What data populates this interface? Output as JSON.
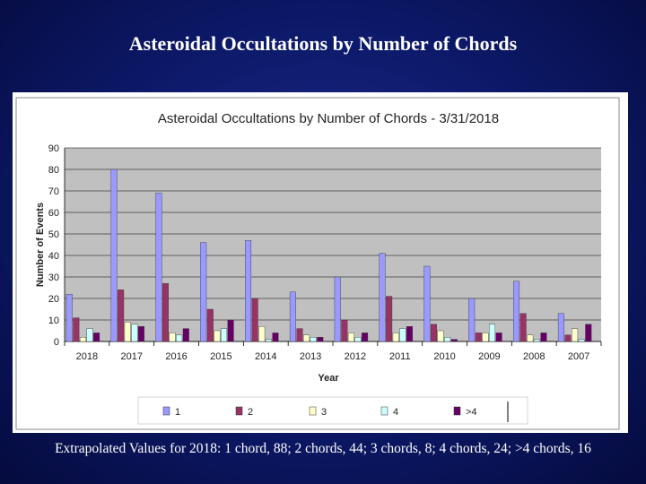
{
  "slide": {
    "title": "Asteroidal Occultations by Number of Chords",
    "footer": "Extrapolated Values for 2018:  1 chord, 88; 2 chords, 44; 3 chords, 8; 4 chords, 24; >4 chords, 16"
  },
  "chart_data": {
    "type": "bar",
    "title": "Asteroidal Occultations by Number of Chords - 3/31/2018",
    "xlabel": "Year",
    "ylabel": "Number of Events",
    "ylim": [
      0,
      90
    ],
    "yticks": [
      0,
      10,
      20,
      30,
      40,
      50,
      60,
      70,
      80,
      90
    ],
    "grid": true,
    "legend_position": "bottom",
    "categories": [
      "2018",
      "2017",
      "2016",
      "2015",
      "2014",
      "2013",
      "2012",
      "2011",
      "2010",
      "2009",
      "2008",
      "2007"
    ],
    "series": [
      {
        "name": "1",
        "color": "#9999ff",
        "values": [
          22,
          80,
          69,
          46,
          47,
          23,
          30,
          41,
          35,
          20,
          28,
          13
        ]
      },
      {
        "name": "2",
        "color": "#993366",
        "values": [
          11,
          24,
          27,
          15,
          20,
          6,
          10,
          21,
          8,
          4,
          13,
          3
        ]
      },
      {
        "name": "3",
        "color": "#ffffcc",
        "values": [
          2,
          9,
          4,
          5,
          7,
          3,
          4,
          4,
          5,
          4,
          3,
          6
        ]
      },
      {
        "name": "4",
        "color": "#ccffff",
        "values": [
          6,
          8,
          3,
          6,
          1,
          2,
          2,
          6,
          2,
          8,
          1,
          1
        ]
      },
      {
        "name": ">4",
        "color": "#660066",
        "values": [
          4,
          7,
          6,
          10,
          4,
          2,
          4,
          7,
          1,
          4,
          4,
          8
        ]
      }
    ]
  }
}
